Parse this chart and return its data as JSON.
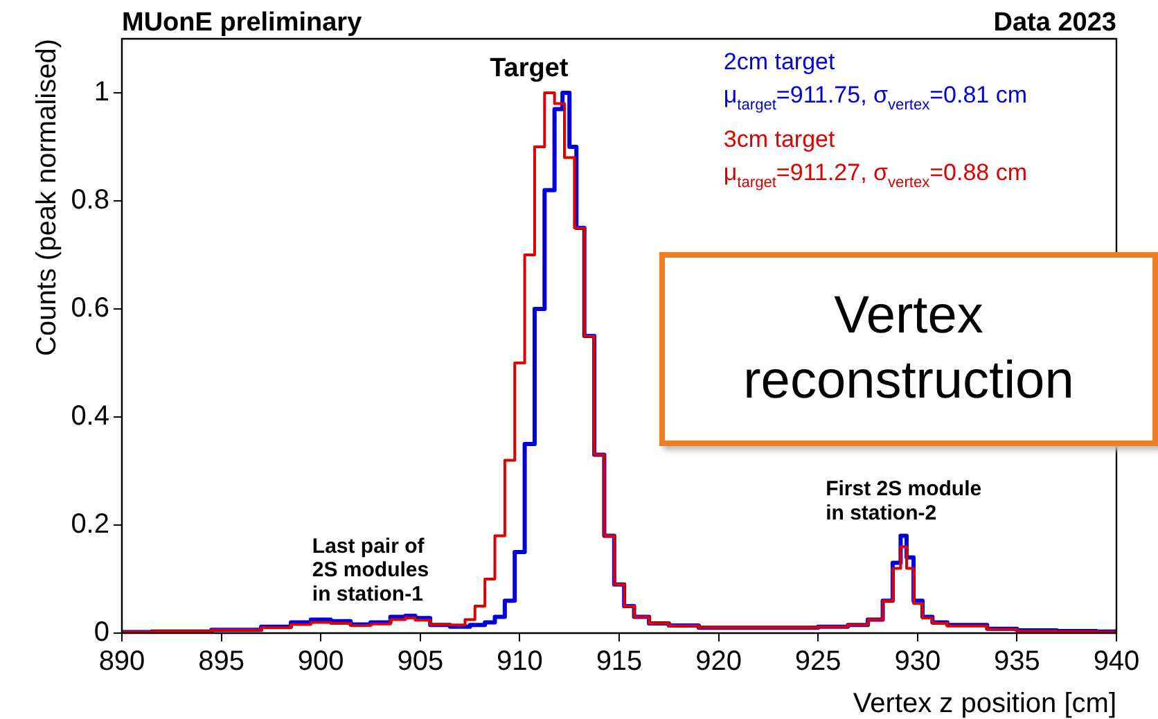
{
  "chart_data": {
    "type": "step",
    "title": "MUonE preliminary",
    "subtitle": "Data 2023",
    "xlabel": "Vertex z position [cm]",
    "ylabel": "Counts (peak normalised)",
    "xlim": [
      890,
      940
    ],
    "xticks": [
      890,
      895,
      900,
      905,
      910,
      915,
      920,
      925,
      930,
      935,
      940
    ],
    "ylim": [
      0,
      1.1
    ],
    "yticks": [
      0,
      0.2,
      0.4,
      0.6,
      0.8,
      1
    ],
    "grid": false,
    "legend": "top right",
    "series": [
      {
        "name": "2cm target",
        "color": "#0000dd",
        "x": [
          890,
          893,
          896,
          898,
          899,
          900,
          901,
          902,
          903,
          904,
          904.5,
          905,
          906,
          907,
          908,
          908.5,
          909,
          909.5,
          910,
          910.5,
          911,
          911.5,
          912,
          912.3,
          912.7,
          913,
          913.5,
          914,
          914.5,
          915,
          915.5,
          916,
          917,
          918,
          920,
          922,
          924,
          926,
          927,
          928,
          928.5,
          929,
          929.3,
          929.6,
          930,
          930.5,
          931,
          932,
          933,
          934,
          936,
          938,
          940
        ],
        "values": [
          0.002,
          0.003,
          0.006,
          0.012,
          0.02,
          0.025,
          0.022,
          0.016,
          0.02,
          0.03,
          0.032,
          0.028,
          0.015,
          0.012,
          0.015,
          0.02,
          0.03,
          0.06,
          0.15,
          0.35,
          0.6,
          0.82,
          0.97,
          1,
          0.9,
          0.75,
          0.55,
          0.33,
          0.18,
          0.09,
          0.05,
          0.03,
          0.018,
          0.014,
          0.01,
          0.01,
          0.01,
          0.012,
          0.015,
          0.025,
          0.06,
          0.13,
          0.18,
          0.14,
          0.06,
          0.03,
          0.02,
          0.015,
          0.015,
          0.008,
          0.005,
          0.004,
          0.003
        ]
      },
      {
        "name": "3cm target",
        "color": "#dd0000",
        "x": [
          890,
          893,
          896,
          898,
          899,
          900,
          901,
          902,
          903,
          904,
          904.5,
          905,
          906,
          907,
          907.5,
          908,
          908.5,
          909,
          909.5,
          910,
          910.5,
          911,
          911.5,
          912,
          912.5,
          913,
          913.5,
          914,
          914.5,
          915,
          915.5,
          916,
          917,
          918,
          920,
          922,
          924,
          926,
          927,
          928,
          928.5,
          929,
          929.3,
          929.6,
          930,
          930.5,
          931,
          932,
          933,
          934,
          936,
          938,
          940
        ],
        "values": [
          0.002,
          0.003,
          0.006,
          0.01,
          0.016,
          0.02,
          0.018,
          0.014,
          0.017,
          0.025,
          0.028,
          0.024,
          0.016,
          0.015,
          0.025,
          0.05,
          0.1,
          0.18,
          0.32,
          0.5,
          0.7,
          0.9,
          1,
          0.98,
          0.88,
          0.75,
          0.55,
          0.33,
          0.18,
          0.09,
          0.05,
          0.03,
          0.018,
          0.014,
          0.01,
          0.01,
          0.01,
          0.012,
          0.015,
          0.025,
          0.06,
          0.12,
          0.16,
          0.12,
          0.055,
          0.028,
          0.018,
          0.013,
          0.013,
          0.007,
          0.004,
          0.003,
          0.002
        ]
      }
    ],
    "annotations": [
      {
        "text": "Target",
        "x": 912,
        "y": 1
      },
      "μ$_{target}$=911.75, σ$_{vertex}$=0.81 cm",
      "μ$_{target}$=911.27, σ$_{vertex}$=0.88 cm",
      {
        "text": "Last pair of\n2S modules\nin station-1",
        "x": 902.5,
        "y": 0.03
      },
      {
        "text": "First 2S module\nin station-2",
        "x": 929.3,
        "y": 0.18
      },
      "Vertex reconstruction"
    ]
  }
}
